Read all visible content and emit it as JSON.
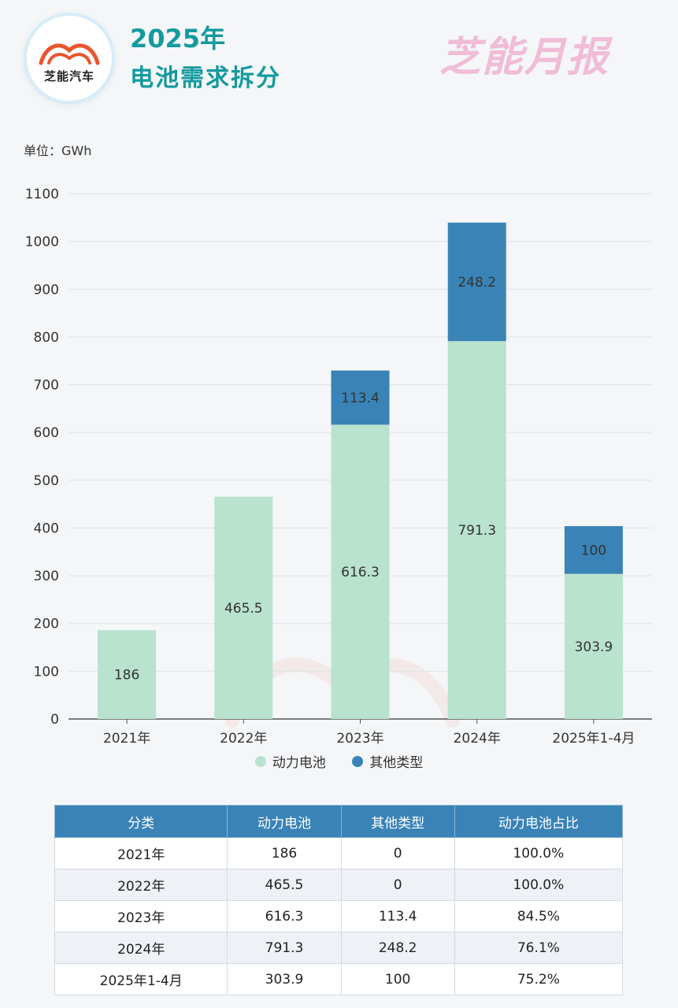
{
  "header": {
    "logo_text": "芝能汽车",
    "title_line1": "2025年",
    "title_line2": "电池需求拆分",
    "brand": "芝能月报"
  },
  "unit_label": "单位：GWh",
  "chart_data": {
    "type": "bar",
    "stacked": true,
    "categories": [
      "2021年",
      "2022年",
      "2023年",
      "2024年",
      "2025年1-4月"
    ],
    "series": [
      {
        "name": "动力电池",
        "values": [
          186,
          465.5,
          616.3,
          791.3,
          303.9
        ],
        "color": "#b9e2cf"
      },
      {
        "name": "其他类型",
        "values": [
          0,
          0,
          113.4,
          248.2,
          100
        ],
        "color": "#3a83b7"
      }
    ],
    "data_labels": [
      [
        "186",
        "465.5",
        "616.3",
        "791.3",
        "303.9"
      ],
      [
        "",
        "",
        "113.4",
        "248.2",
        "100"
      ]
    ],
    "yticks": [
      "0",
      "100",
      "200",
      "300",
      "400",
      "500",
      "600",
      "700",
      "800",
      "900",
      "1000",
      "1100"
    ],
    "ylim": [
      0,
      1100
    ],
    "grid": true,
    "legend_position": "bottom"
  },
  "table": {
    "headers": [
      "分类",
      "动力电池",
      "其他类型",
      "动力电池占比"
    ],
    "rows": [
      [
        "2021年",
        "186",
        "0",
        "100.0%"
      ],
      [
        "2022年",
        "465.5",
        "0",
        "100.0%"
      ],
      [
        "2023年",
        "616.3",
        "113.4",
        "84.5%"
      ],
      [
        "2024年",
        "791.3",
        "248.2",
        "76.1%"
      ],
      [
        "2025年1-4月",
        "303.9",
        "100",
        "75.2%"
      ]
    ]
  }
}
